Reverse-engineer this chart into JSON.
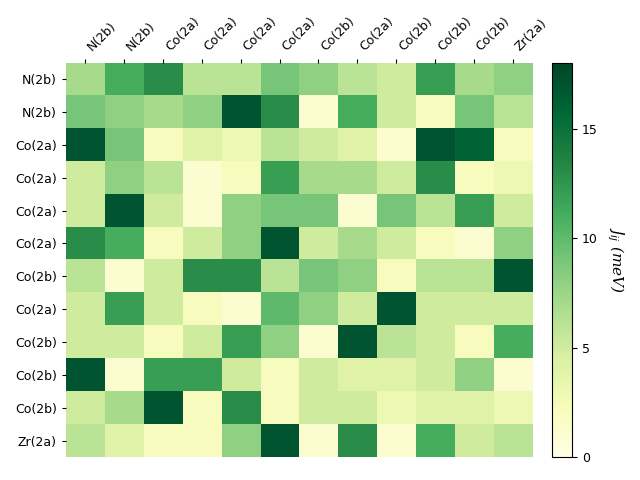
{
  "labels": [
    "N(2b)",
    "N(2b)",
    "Co(2a)",
    "Co(2a)",
    "Co(2a)",
    "Co(2a)",
    "Co(2b)",
    "Co(2a)",
    "Co(2b)",
    "Co(2b)",
    "Co(2b)",
    "Zr(2a)"
  ],
  "matrix": [
    [
      7,
      11,
      13,
      6,
      6,
      9,
      8,
      6,
      5,
      12,
      7,
      8
    ],
    [
      9,
      8,
      7,
      8,
      17,
      13,
      1,
      11,
      5,
      2,
      9,
      6
    ],
    [
      17,
      9,
      2,
      4,
      3,
      6,
      5,
      4,
      1,
      17,
      16,
      2
    ],
    [
      5,
      8,
      6,
      1,
      2,
      12,
      7,
      7,
      5,
      13,
      2,
      3
    ],
    [
      5,
      17,
      5,
      1,
      8,
      9,
      9,
      1,
      9,
      6,
      12,
      5
    ],
    [
      13,
      11,
      2,
      5,
      8,
      17,
      5,
      7,
      5,
      2,
      1,
      8
    ],
    [
      6,
      1,
      5,
      13,
      13,
      6,
      9,
      8,
      2,
      6,
      6,
      17
    ],
    [
      5,
      12,
      5,
      2,
      1,
      10,
      8,
      5,
      17,
      5,
      5,
      5
    ],
    [
      5,
      5,
      2,
      5,
      12,
      8,
      1,
      17,
      6,
      5,
      2,
      11
    ],
    [
      17,
      1,
      12,
      12,
      5,
      2,
      5,
      4,
      4,
      5,
      8,
      1
    ],
    [
      5,
      7,
      17,
      2,
      13,
      2,
      5,
      5,
      3,
      4,
      4,
      3
    ],
    [
      6,
      4,
      2,
      2,
      8,
      17,
      1,
      13,
      1,
      11,
      5,
      6
    ]
  ],
  "vmin": 0,
  "vmax": 18,
  "cmap": "YlGn",
  "colorbar_label": "$J_{ij}$ (meV)",
  "colorbar_ticks": [
    0,
    5,
    10,
    15
  ],
  "figsize": [
    6.4,
    4.8
  ],
  "dpi": 100
}
